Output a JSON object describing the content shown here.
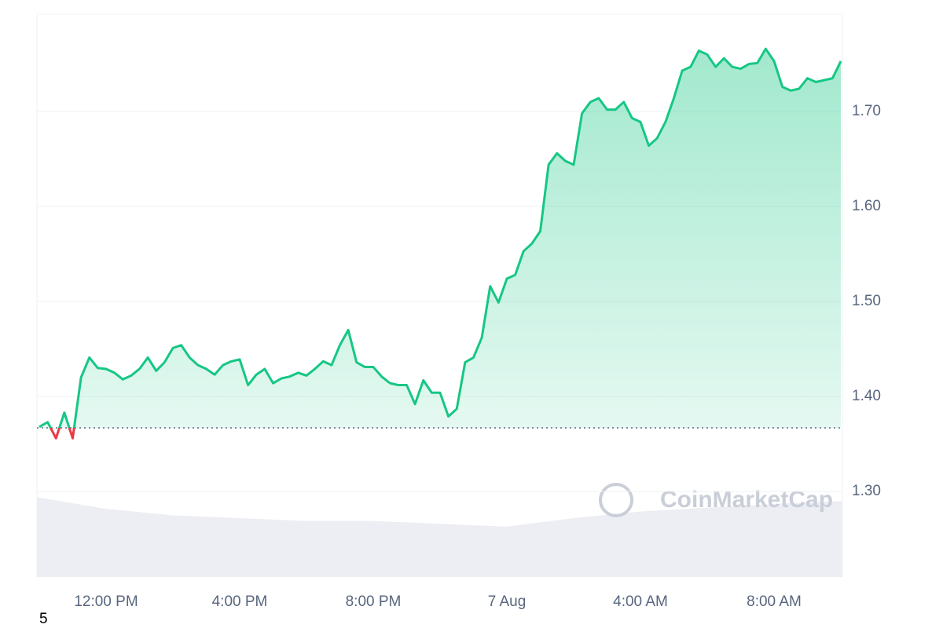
{
  "chart_data": {
    "type": "line",
    "categories": [
      null,
      null,
      null,
      null,
      null,
      null,
      null,
      null,
      "12:00 PM",
      null,
      null,
      null,
      null,
      null,
      null,
      null,
      null,
      null,
      null,
      null,
      null,
      null,
      null,
      null,
      "4:00 PM",
      null,
      null,
      null,
      null,
      null,
      null,
      null,
      null,
      null,
      null,
      null,
      null,
      null,
      null,
      null,
      "8:00 PM",
      null,
      null,
      null,
      null,
      null,
      null,
      null,
      null,
      null,
      null,
      null,
      null,
      null,
      null,
      null,
      "7 Aug",
      null,
      null,
      null,
      null,
      null,
      null,
      null,
      null,
      null,
      null,
      null,
      null,
      null,
      null,
      null,
      "4:00 AM",
      null,
      null,
      null,
      null,
      null,
      null,
      null,
      null,
      null,
      null,
      null,
      null,
      null,
      null,
      null,
      "8:00 AM",
      null,
      null,
      null,
      null,
      null,
      null,
      null,
      null
    ],
    "series": [
      {
        "color": "#16c784",
        "below_color": "#ea3943",
        "values": [
          1.368,
          1.373,
          1.356,
          1.383,
          1.356,
          1.42,
          1.441,
          1.43,
          1.429,
          1.425,
          1.418,
          1.422,
          1.429,
          1.441,
          1.427,
          1.436,
          1.451,
          1.454,
          1.441,
          1.433,
          1.429,
          1.423,
          1.433,
          1.437,
          1.439,
          1.412,
          1.423,
          1.429,
          1.414,
          1.419,
          1.421,
          1.425,
          1.422,
          1.429,
          1.437,
          1.433,
          1.454,
          1.47,
          1.436,
          1.431,
          1.431,
          1.421,
          1.414,
          1.412,
          1.412,
          1.392,
          1.417,
          1.404,
          1.404,
          1.379,
          1.387,
          1.436,
          1.441,
          1.462,
          1.516,
          1.499,
          1.524,
          1.528,
          1.553,
          1.561,
          1.574,
          1.644,
          1.656,
          1.648,
          1.644,
          1.698,
          1.71,
          1.714,
          1.702,
          1.702,
          1.71,
          1.693,
          1.689,
          1.664,
          1.672,
          1.689,
          1.714,
          1.743,
          1.747,
          1.764,
          1.76,
          1.747,
          1.756,
          1.747,
          1.745,
          1.75,
          1.751,
          1.766,
          1.753,
          1.726,
          1.722,
          1.724,
          1.735,
          1.731,
          1.733,
          1.735,
          1.753
        ]
      }
    ],
    "baseline": 1.367,
    "volume": {
      "color": "#eceef3",
      "values": [
        1.294,
        1.282,
        1.275,
        1.272,
        1.269,
        1.269,
        1.266,
        1.263,
        1.272,
        1.279,
        1.283,
        1.287,
        1.29
      ]
    },
    "ylim": [
      1.21,
      1.8025
    ],
    "yticks": [
      {
        "value": 1.3,
        "label": "1.30"
      },
      {
        "value": 1.4,
        "label": "1.40"
      },
      {
        "value": 1.5,
        "label": "1.50"
      },
      {
        "value": 1.6,
        "label": "1.60"
      },
      {
        "value": 1.7,
        "label": "1.70"
      }
    ],
    "grid": true,
    "watermark": "CoinMarketCap",
    "footnote": "5"
  }
}
